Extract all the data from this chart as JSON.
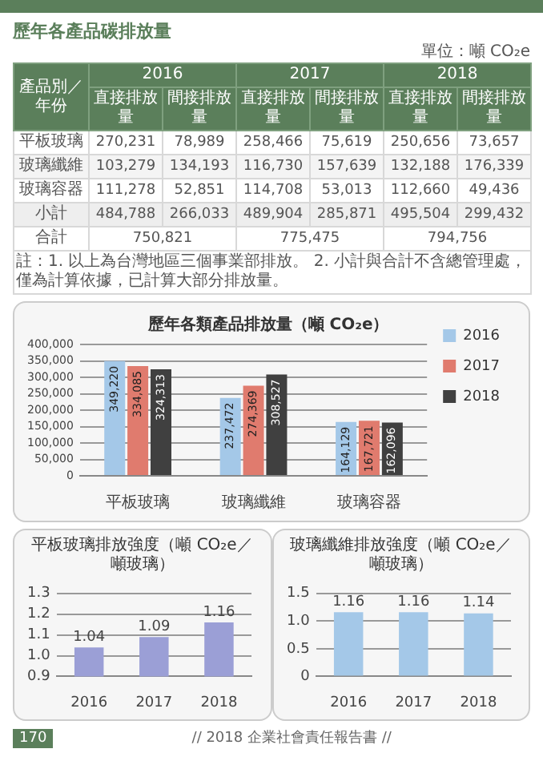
{
  "chart_data": [
    {
      "type": "other",
      "title": "歷年各產品碳排放量",
      "annotations": [
        "單位：噸 CO₂e",
        "產品別／年份",
        "2016",
        "2017",
        "2018",
        "直接排放量",
        "間接排放量",
        "直接排放量",
        "間接排放量",
        "直接排放量",
        "間接排放量",
        "平板玻璃",
        "270,231",
        "78,989",
        "258,466",
        "75,619",
        "250,656",
        "73,657",
        "玻璃纖維",
        "103,279",
        "134,193",
        "116,730",
        "157,639",
        "132,188",
        "176,339",
        "玻璃容器",
        "111,278",
        "52,851",
        "114,708",
        "53,013",
        "112,660",
        "49,436",
        "小計",
        "484,788",
        "266,033",
        "489,904",
        "285,871",
        "495,504",
        "299,432",
        "合計",
        "750,821",
        "775,475",
        "794,756",
        "註：1. 以上為台灣地區三個事業部排放。 2. 小計與合計不含總管理處，僅為計算依據，已計算大部分排放量。",
        "170",
        "// 2018 企業社會責任報告書 //"
      ]
    },
    {
      "type": "bar",
      "title": "歷年各類產品排放量（噸 CO₂e）",
      "categories": [
        "平板玻璃",
        "玻璃纖維",
        "玻璃容器"
      ],
      "series": [
        {
          "name": "2016",
          "color": "#a4c8e8",
          "values": [
            349220,
            237472,
            164129
          ],
          "value_labels": [
            "349,220",
            "237,472",
            "164,129"
          ]
        },
        {
          "name": "2017",
          "color": "#e07b6e",
          "values": [
            334085,
            274369,
            167721
          ],
          "value_labels": [
            "334,085",
            "274,369",
            "167,721"
          ]
        },
        {
          "name": "2018",
          "color": "#404040",
          "values": [
            324313,
            308527,
            162096
          ],
          "value_labels": [
            "324,313",
            "308,527",
            "162,096"
          ]
        }
      ],
      "ylim": [
        0,
        400000
      ],
      "yticks": [
        {
          "value": 0,
          "label": "0"
        },
        {
          "value": 50000,
          "label": "50,000"
        },
        {
          "value": 100000,
          "label": "100,000"
        },
        {
          "value": 150000,
          "label": "150,000"
        },
        {
          "value": 200000,
          "label": "200,000"
        },
        {
          "value": 250000,
          "label": "250,000"
        },
        {
          "value": 300000,
          "label": "300,000"
        },
        {
          "value": 350000,
          "label": "350,000"
        },
        {
          "value": 400000,
          "label": "400,000"
        }
      ],
      "grid": "y",
      "legend": "right"
    },
    {
      "type": "bar",
      "title": "平板玻璃排放強度（噸 CO₂e／噸玻璃）",
      "categories": [
        "2016",
        "2017",
        "2018"
      ],
      "values": [
        1.04,
        1.09,
        1.16
      ],
      "color": "#9b9fd6",
      "ylim": [
        0.9,
        1.3
      ],
      "yticks": [
        0.9,
        {
          "value": 1,
          "label": "1.0"
        },
        1.1,
        1.2,
        1.3
      ],
      "grid": "y",
      "data_labels": true
    },
    {
      "type": "bar",
      "title": "玻璃纖維排放強度（噸 CO₂e／噸玻璃）",
      "categories": [
        "2016",
        "2017",
        "2018"
      ],
      "values": [
        1.16,
        1.16,
        1.14
      ],
      "color": "#a4c8e8",
      "ylim": [
        0,
        1.5
      ],
      "yticks": [
        0,
        0.5,
        {
          "value": 1,
          "label": "1.0"
        },
        1.5
      ],
      "grid": "y",
      "data_labels": true
    }
  ]
}
